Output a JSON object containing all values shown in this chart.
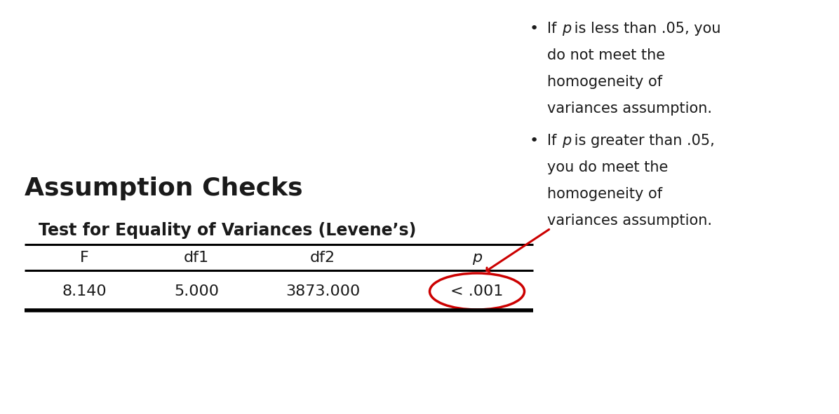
{
  "title": "Assumption Checks",
  "table_title": "Test for Equality of Variances (Levene’s)",
  "headers": [
    "F",
    "df1",
    "df2",
    "p"
  ],
  "values": [
    "8.140",
    "5.000",
    "3873.000",
    "< .001"
  ],
  "background_color": "#ffffff",
  "text_color": "#1a1a1a",
  "arrow_color": "#cc0000",
  "circle_color": "#cc0000",
  "title_fontsize": 26,
  "table_title_fontsize": 17,
  "header_fontsize": 16,
  "value_fontsize": 16,
  "bullet_fontsize": 15,
  "line_color": "#000000",
  "figwidth": 11.96,
  "figheight": 5.91,
  "dpi": 100
}
